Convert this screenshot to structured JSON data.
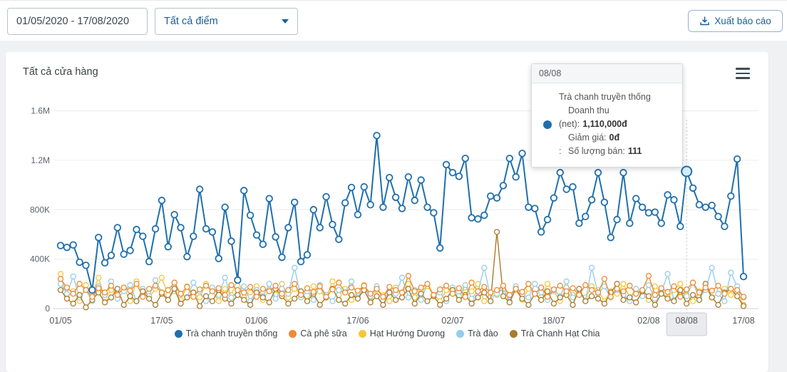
{
  "toolbar": {
    "date_range": "01/05/2020 - 17/08/2020",
    "filter_dropdown_value": "Tất cả điểm",
    "export_label": "Xuất báo cáo"
  },
  "card": {
    "title": "Tất cả cửa hàng"
  },
  "tooltip": {
    "header": "08/08",
    "series_name": "Trà chanh truyền thống",
    "marker_color": "#1f6fad",
    "rows": [
      {
        "prefix": "",
        "label": "Doanh thu (net):",
        "value": "1,110,000đ"
      },
      {
        "prefix": "",
        "label": "Giảm giá:",
        "value": "0đ"
      },
      {
        "prefix": ":",
        "label": "Số lượng bán:",
        "value": "111"
      }
    ]
  },
  "chart_data": {
    "type": "line",
    "title": "Tất cả cửa hàng",
    "x_range": [
      "01/05/2020",
      "17/08/2020"
    ],
    "unit": "VND, values in thousands (K)",
    "ylim": [
      0,
      1600
    ],
    "grid": "horizontal",
    "legend_position": "bottom",
    "y_ticks": [
      {
        "label": "0",
        "value": 0
      },
      {
        "label": "400K",
        "value": 400
      },
      {
        "label": "800K",
        "value": 800
      },
      {
        "label": "1.2M",
        "value": 1200
      },
      {
        "label": "1.6M",
        "value": 1600
      }
    ],
    "x_ticks": [
      {
        "label": "01/05",
        "day": 0
      },
      {
        "label": "17/05",
        "day": 16
      },
      {
        "label": "01/06",
        "day": 31
      },
      {
        "label": "17/06",
        "day": 47
      },
      {
        "label": "02/07",
        "day": 62
      },
      {
        "label": "18/07",
        "day": 78
      },
      {
        "label": "02/08",
        "day": 93
      },
      {
        "label": "08/08",
        "day": 99,
        "highlighted": true
      },
      {
        "label": "17/08",
        "day": 108
      }
    ],
    "highlight": {
      "series": 0,
      "index": 99,
      "date": "08/08",
      "value": 1110
    },
    "series": [
      {
        "name": "Trà chanh truyền thống",
        "color": "#1f6fad",
        "values": [
          510,
          495,
          515,
          375,
          350,
          150,
          575,
          370,
          430,
          655,
          440,
          470,
          640,
          585,
          380,
          645,
          875,
          500,
          760,
          655,
          420,
          585,
          965,
          645,
          620,
          405,
          820,
          545,
          230,
          955,
          755,
          595,
          520,
          890,
          580,
          415,
          655,
          860,
          380,
          435,
          800,
          655,
          905,
          680,
          560,
          855,
          980,
          760,
          985,
          840,
          1400,
          820,
          1060,
          900,
          810,
          1065,
          875,
          1040,
          820,
          775,
          490,
          1165,
          1100,
          1070,
          1215,
          735,
          725,
          755,
          910,
          895,
          995,
          1215,
          1065,
          1255,
          820,
          810,
          620,
          720,
          895,
          1100,
          965,
          985,
          690,
          745,
          880,
          1100,
          860,
          575,
          720,
          1100,
          690,
          890,
          820,
          775,
          780,
          690,
          920,
          880,
          665,
          1110,
          975,
          840,
          820,
          835,
          745,
          665,
          910,
          1210,
          259
        ]
      },
      {
        "name": "Cà phê sữa",
        "color": "#ee8b33",
        "values": [
          240,
          170,
          120,
          200,
          150,
          95,
          165,
          130,
          185,
          110,
          170,
          145,
          200,
          95,
          160,
          185,
          130,
          150,
          210,
          120,
          175,
          95,
          155,
          185,
          140,
          165,
          110,
          190,
          150,
          130,
          175,
          95,
          160,
          140,
          185,
          120,
          150,
          200,
          110,
          165,
          135,
          180,
          95,
          155,
          210,
          130,
          170,
          145,
          185,
          120,
          160,
          95,
          175,
          150,
          130,
          265,
          140,
          170,
          200,
          110,
          155,
          185,
          120,
          165,
          95,
          210,
          140,
          175,
          130,
          150,
          185,
          110,
          160,
          135,
          200,
          120,
          170,
          95,
          155,
          185,
          140,
          165,
          110,
          190,
          150,
          130,
          240,
          95,
          160,
          140,
          185,
          120,
          150,
          265,
          110,
          165,
          135,
          180,
          95,
          155,
          210,
          130,
          170,
          145,
          185,
          120,
          160,
          150,
          95
        ]
      },
      {
        "name": "Hạt Hướng Dương",
        "color": "#f3c838",
        "values": [
          280,
          90,
          140,
          60,
          190,
          120,
          250,
          80,
          150,
          110,
          170,
          60,
          220,
          130,
          90,
          160,
          250,
          110,
          140,
          70,
          180,
          120,
          90,
          200,
          140,
          60,
          160,
          110,
          240,
          90,
          130,
          180,
          70,
          150,
          110,
          200,
          90,
          160,
          120,
          60,
          180,
          140,
          90,
          220,
          110,
          160,
          70,
          130,
          190,
          90,
          150,
          110,
          60,
          170,
          130,
          200,
          90,
          140,
          180,
          110,
          60,
          150,
          120,
          90,
          170,
          140,
          200,
          60,
          130,
          110,
          180,
          90,
          150,
          70,
          160,
          120,
          90,
          200,
          140,
          60,
          170,
          110,
          130,
          90,
          180,
          150,
          60,
          140,
          120,
          200,
          90,
          160,
          110,
          70,
          180,
          130,
          90,
          150,
          200,
          110,
          60,
          140,
          170,
          90,
          120,
          160,
          110,
          130,
          30
        ]
      },
      {
        "name": "Trà đào",
        "color": "#94cdec",
        "values": [
          200,
          120,
          260,
          90,
          150,
          60,
          180,
          110,
          220,
          80,
          140,
          190,
          60,
          160,
          100,
          230,
          130,
          70,
          180,
          120,
          90,
          210,
          140,
          60,
          170,
          110,
          250,
          90,
          130,
          180,
          60,
          150,
          100,
          200,
          80,
          160,
          120,
          330,
          90,
          140,
          70,
          190,
          110,
          60,
          150,
          130,
          220,
          90,
          160,
          100,
          180,
          60,
          140,
          120,
          250,
          90,
          150,
          70,
          200,
          110,
          130,
          60,
          170,
          100,
          190,
          80,
          140,
          330,
          90,
          120,
          160,
          60,
          180,
          110,
          90,
          200,
          130,
          70,
          150,
          100,
          220,
          90,
          140,
          60,
          330,
          120,
          180,
          90,
          150,
          110,
          60,
          160,
          100,
          190,
          80,
          130,
          280,
          70,
          140,
          100,
          210,
          90,
          150,
          330,
          120,
          60,
          290,
          180,
          90
        ]
      },
      {
        "name": "Trà Chanh Hạt Chia",
        "color": "#a87b2d",
        "values": [
          150,
          80,
          40,
          110,
          10,
          70,
          130,
          50,
          90,
          160,
          30,
          100,
          60,
          140,
          80,
          30,
          120,
          70,
          160,
          40,
          90,
          130,
          20,
          100,
          60,
          150,
          80,
          40,
          110,
          70,
          30,
          130,
          90,
          50,
          160,
          100,
          40,
          80,
          140,
          60,
          120,
          30,
          90,
          160,
          70,
          40,
          110,
          80,
          150,
          50,
          100,
          30,
          130,
          70,
          90,
          160,
          40,
          120,
          60,
          100,
          30,
          80,
          150,
          70,
          110,
          40,
          90,
          130,
          60,
          620,
          100,
          50,
          160,
          80,
          30,
          120,
          70,
          140,
          40,
          90,
          110,
          30,
          160,
          60,
          100,
          80,
          40,
          130,
          200,
          70,
          90,
          50,
          140,
          100,
          30,
          120,
          80,
          60,
          150,
          40,
          110,
          70,
          200,
          90,
          30,
          130,
          160,
          100,
          20
        ]
      }
    ]
  }
}
